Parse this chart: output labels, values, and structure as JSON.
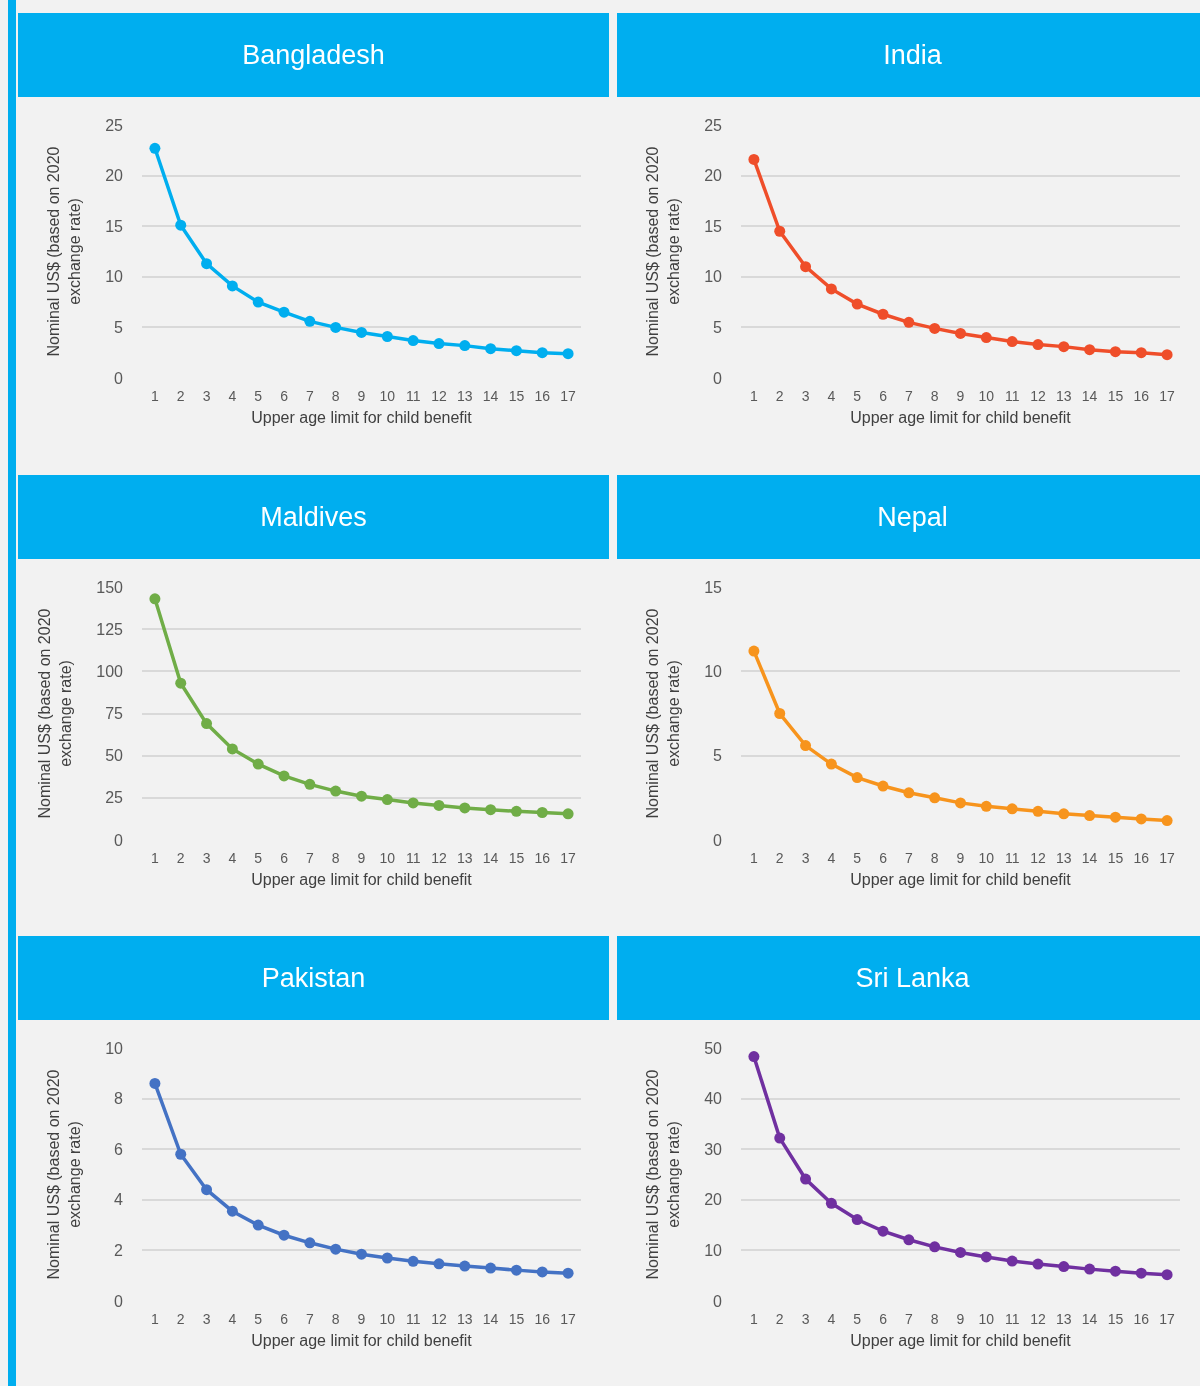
{
  "chart_data": [
    {
      "type": "line",
      "title": "Bangladesh",
      "xlabel": "Upper age limit for child benefit",
      "ylabel": "Nominal US$ (based on 2020 exchange rate)",
      "categories": [
        "1",
        "2",
        "3",
        "4",
        "5",
        "6",
        "7",
        "8",
        "9",
        "10",
        "11",
        "12",
        "13",
        "14",
        "15",
        "16",
        "17"
      ],
      "series": [
        {
          "color": "#00aeef",
          "values": [
            22.7,
            15.1,
            11.3,
            9.1,
            7.5,
            6.5,
            5.6,
            5.0,
            4.5,
            4.1,
            3.7,
            3.4,
            3.2,
            2.9,
            2.7,
            2.5,
            2.4
          ]
        }
      ],
      "ylim": [
        0,
        25
      ],
      "yticks": [
        0,
        5,
        10,
        15,
        20,
        25
      ],
      "grid": "y",
      "marker": "circle"
    },
    {
      "type": "line",
      "title": "India",
      "xlabel": "Upper age limit for child benefit",
      "ylabel": "Nominal US$ (based on 2020 exchange rate)",
      "categories": [
        "1",
        "2",
        "3",
        "4",
        "5",
        "6",
        "7",
        "8",
        "9",
        "10",
        "11",
        "12",
        "13",
        "14",
        "15",
        "16",
        "17"
      ],
      "series": [
        {
          "color": "#ef4e2a",
          "values": [
            21.6,
            14.5,
            11.0,
            8.8,
            7.3,
            6.3,
            5.5,
            4.9,
            4.4,
            4.0,
            3.6,
            3.3,
            3.1,
            2.8,
            2.6,
            2.5,
            2.3
          ]
        }
      ],
      "ylim": [
        0,
        25
      ],
      "yticks": [
        0,
        5,
        10,
        15,
        20,
        25
      ],
      "grid": "y",
      "marker": "circle"
    },
    {
      "type": "line",
      "title": "Maldives",
      "xlabel": "Upper age limit for child benefit",
      "ylabel": "Nominal US$ (based on 2020 exchange rate)",
      "categories": [
        "1",
        "2",
        "3",
        "4",
        "5",
        "6",
        "7",
        "8",
        "9",
        "10",
        "11",
        "12",
        "13",
        "14",
        "15",
        "16",
        "17"
      ],
      "series": [
        {
          "color": "#70ad47",
          "values": [
            143,
            93,
            69,
            54,
            45,
            38,
            33,
            29,
            26,
            24,
            22,
            20.5,
            19,
            18,
            17,
            16.3,
            15.5
          ]
        }
      ],
      "ylim": [
        0,
        150
      ],
      "yticks": [
        0,
        25,
        50,
        75,
        100,
        125,
        150
      ],
      "grid": "y",
      "marker": "circle"
    },
    {
      "type": "line",
      "title": "Nepal",
      "xlabel": "Upper age limit for child benefit",
      "ylabel": "Nominal US$ (based on 2020 exchange rate)",
      "categories": [
        "1",
        "2",
        "3",
        "4",
        "5",
        "6",
        "7",
        "8",
        "9",
        "10",
        "11",
        "12",
        "13",
        "14",
        "15",
        "16",
        "17"
      ],
      "series": [
        {
          "color": "#f7941d",
          "values": [
            11.2,
            7.5,
            5.6,
            4.5,
            3.7,
            3.2,
            2.8,
            2.5,
            2.2,
            2.0,
            1.85,
            1.7,
            1.55,
            1.45,
            1.35,
            1.25,
            1.15
          ]
        }
      ],
      "ylim": [
        0,
        15
      ],
      "yticks": [
        0,
        5,
        10,
        15
      ],
      "grid": "y",
      "marker": "circle"
    },
    {
      "type": "line",
      "title": "Pakistan",
      "xlabel": "Upper age limit for child benefit",
      "ylabel": "Nominal US$ (based on 2020 exchange rate)",
      "categories": [
        "1",
        "2",
        "3",
        "4",
        "5",
        "6",
        "7",
        "8",
        "9",
        "10",
        "11",
        "12",
        "13",
        "14",
        "15",
        "16",
        "17"
      ],
      "series": [
        {
          "color": "#4472c4",
          "values": [
            8.6,
            5.8,
            4.4,
            3.55,
            3.0,
            2.6,
            2.3,
            2.05,
            1.85,
            1.7,
            1.57,
            1.47,
            1.38,
            1.3,
            1.22,
            1.15,
            1.1
          ]
        }
      ],
      "ylim": [
        0,
        10
      ],
      "yticks": [
        0,
        2,
        4,
        6,
        8,
        10
      ],
      "grid": "y",
      "marker": "circle"
    },
    {
      "type": "line",
      "title": "Sri Lanka",
      "xlabel": "Upper age limit for child benefit",
      "ylabel": "Nominal US$ (based on 2020 exchange rate)",
      "categories": [
        "1",
        "2",
        "3",
        "4",
        "5",
        "6",
        "7",
        "8",
        "9",
        "10",
        "11",
        "12",
        "13",
        "14",
        "15",
        "16",
        "17"
      ],
      "series": [
        {
          "color": "#7030a0",
          "values": [
            48.3,
            32.2,
            24.1,
            19.3,
            16.1,
            13.8,
            12.1,
            10.7,
            9.6,
            8.7,
            7.9,
            7.3,
            6.8,
            6.3,
            5.9,
            5.5,
            5.2
          ]
        }
      ],
      "ylim": [
        0,
        50
      ],
      "yticks": [
        0,
        10,
        20,
        30,
        40,
        50
      ],
      "grid": "y",
      "marker": "circle"
    }
  ]
}
